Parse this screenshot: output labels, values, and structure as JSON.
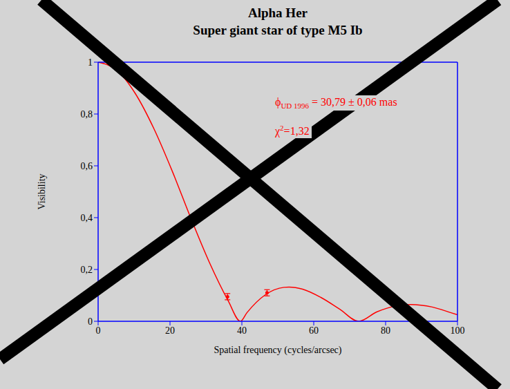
{
  "chart_data": {
    "type": "line",
    "title": "Alpha Her",
    "subtitle": "Super giant star of type M5 Ib",
    "x_label": "Spatial frequency (cycles/arcsec)",
    "y_label": "Visibility",
    "x": [
      0,
      5.2,
      10.3,
      15.5,
      20.7,
      25.8,
      31,
      36.2,
      39.6,
      41.4,
      46.5,
      51.7,
      53.1,
      56.9,
      62,
      67.2,
      72.5,
      77.5,
      82.7,
      87,
      93,
      98.2,
      100
    ],
    "values": [
      1,
      0.969,
      0.88,
      0.744,
      0.577,
      0.398,
      0.226,
      0.079,
      0,
      0.033,
      0.102,
      0.131,
      0.132,
      0.124,
      0.092,
      0.047,
      0,
      0.036,
      0.059,
      0.065,
      0.055,
      0.033,
      0.025
    ],
    "color": "#ff0000",
    "marker": "none",
    "measurements": {
      "x": [
        36,
        47
      ],
      "values": [
        0.095,
        0.11
      ],
      "errors": [
        0.012,
        0.012
      ],
      "color": "#ff0000"
    },
    "xlim": [
      0,
      100
    ],
    "ylim": [
      0,
      1
    ],
    "xticks": [
      0,
      20,
      40,
      60,
      80,
      100
    ],
    "yticks": [
      0,
      {
        "value": 0.2,
        "label": "0,2"
      },
      {
        "value": 0.4,
        "label": "0,4"
      },
      {
        "value": 0.6,
        "label": "0,6"
      },
      {
        "value": 0.8,
        "label": "0,8"
      },
      1
    ],
    "grid": false,
    "annotations": [
      {
        "symbol": "ϕ",
        "subscript": "UD 1996",
        "text": " = 30,79 ± 0,06 mas",
        "color": "#ff0000"
      },
      {
        "symbol": "χ",
        "superscript": "2",
        "text": "=1,32",
        "color": "#ff0000"
      }
    ]
  }
}
